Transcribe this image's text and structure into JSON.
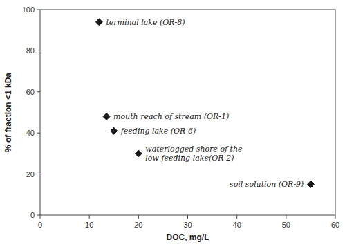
{
  "chart_data": {
    "type": "scatter",
    "x": [
      12.0,
      13.5,
      15.0,
      20.0,
      55.0
    ],
    "values": [
      94,
      48,
      41,
      30,
      15
    ],
    "annotations": [
      "terminal lake (OR-8)",
      "mouth reach of stream (OR-1)",
      "feeding lake (OR-6)",
      "waterlogged shore of the\nlow feeding lake(OR-2)",
      "soil solution (OR-9)"
    ],
    "marker": "diamond",
    "color": "#1a1a1a",
    "xlabel": "DOC, mg/L",
    "ylabel": "% of fraction <1 kDa",
    "xlim": [
      0,
      60
    ],
    "ylim": [
      0,
      100
    ],
    "xticks": [
      0,
      10,
      20,
      30,
      40,
      50,
      60
    ],
    "yticks": [
      0,
      20,
      40,
      60,
      80,
      100
    ],
    "grid": false
  }
}
